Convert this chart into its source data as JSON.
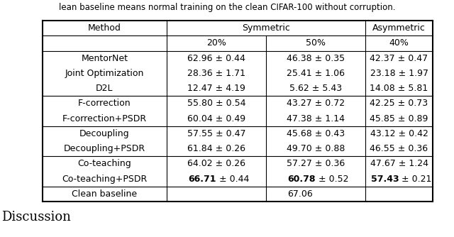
{
  "title_text": "lean baseline means normal training on the clean CIFAR-100 without corruption.",
  "footer_text": "Discussion",
  "rows": [
    [
      "MentorNet",
      "62.96 ± 0.44",
      "46.38 ± 0.35",
      "42.37 ± 0.47"
    ],
    [
      "Joint Optimization",
      "28.36 ± 1.71",
      "25.41 ± 1.06",
      "23.18 ± 1.97"
    ],
    [
      "D2L",
      "12.47 ± 4.19",
      " 5.62 ± 5.43",
      "14.08 ± 5.81"
    ],
    [
      "F-correction",
      "55.80 ± 0.54",
      "43.27 ± 0.72",
      "42.25 ± 0.73"
    ],
    [
      "F-correction+PSDR",
      "60.04 ± 0.49",
      "47.38 ± 1.14",
      "45.85 ± 0.89"
    ],
    [
      "Decoupling",
      "57.55 ± 0.47",
      "45.68 ± 0.43",
      "43.12 ± 0.42"
    ],
    [
      "Decoupling+PSDR",
      "61.84 ± 0.26",
      "49.70 ± 0.88",
      "46.55 ± 0.36"
    ],
    [
      "Co-teaching",
      "64.02 ± 0.26",
      "57.27 ± 0.36",
      "47.67 ± 1.24"
    ],
    [
      "Co-teaching+PSDR",
      "66.71 ± 0.44",
      "60.78 ± 0.52",
      "57.43 ± 0.21"
    ]
  ],
  "bold_row_idx": 8,
  "group_separators_after": [
    2,
    4,
    6
  ],
  "clean_baseline": "67.06",
  "bg_color": "#ffffff",
  "text_color": "#000000",
  "font_size": 9.0,
  "title_font_size": 8.5,
  "footer_font_size": 13.0
}
